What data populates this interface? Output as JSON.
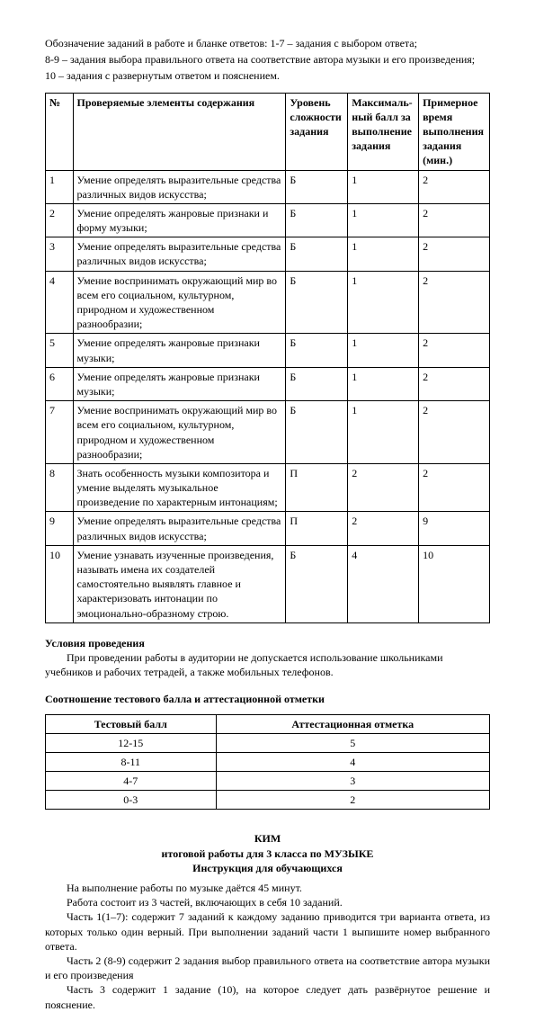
{
  "intro": {
    "line1": "Обозначение заданий в работе и бланке ответов: 1-7 – задания с выбором ответа;",
    "line2": "8-9 – задания выбора правильного ответа на соответствие автора музыки и его произведения;",
    "line3": "10 – задания с развернутым ответом и пояснением."
  },
  "table": {
    "headers": {
      "num": "№",
      "desc": "Проверяемые элементы содержания",
      "level": "Уровень сложности задания",
      "score": "Максималь-ный балл за выполнение задания",
      "time": "Примерное время выполнения задания (мин.)"
    },
    "rows": [
      {
        "num": "1",
        "desc": "Умение определять выразительные средства различных видов искусства;",
        "level": "Б",
        "score": "1",
        "time": "2"
      },
      {
        "num": "2",
        "desc": "Умение определять жанровые признаки и форму музыки;",
        "level": "Б",
        "score": "1",
        "time": "2"
      },
      {
        "num": "3",
        "desc": "Умение определять выразительные средства различных видов искусства;",
        "level": "Б",
        "score": "1",
        "time": "2"
      },
      {
        "num": "4",
        "desc": "Умение воспринимать окружающий мир во всем его социальном, культурном, природном и художественном разнообразии;",
        "level": "Б",
        "score": "1",
        "time": "2"
      },
      {
        "num": "5",
        "desc": "Умение определять жанровые признаки музыки;",
        "level": "Б",
        "score": "1",
        "time": "2"
      },
      {
        "num": "6",
        "desc": "Умение определять жанровые признаки музыки;",
        "level": "Б",
        "score": "1",
        "time": "2"
      },
      {
        "num": "7",
        "desc": "Умение воспринимать окружающий мир во всем его социальном, культурном, природном и художественном разнообразии;",
        "level": "Б",
        "score": "1",
        "time": "2"
      },
      {
        "num": "8",
        "desc": "Знать особенность музыки композитора и умение выделять музыкальное произведение по характерным интонациям;",
        "level": "П",
        "score": "2",
        "time": "2"
      },
      {
        "num": "9",
        "desc": "Умение определять выразительные средства различных видов искусства;",
        "level": "П",
        "score": "2",
        "time": "9"
      },
      {
        "num": "10",
        "desc": "Умение узнавать изученные произведения, называть имена их создателей самостоятельно выявлять главное и характеризовать интонации по эмоционально-образному строю.",
        "level": "Б",
        "score": "4",
        "time": "10"
      }
    ]
  },
  "conditions": {
    "heading": "Условия проведения",
    "text": "При проведении работы в аудитории не допускается использование школьниками учебников и рабочих тетрадей, а также мобильных телефонов."
  },
  "grade": {
    "heading": "Соотношение тестового балла и аттестационной отметки",
    "headers": {
      "score": "Тестовый балл",
      "mark": "Аттестационная отметка"
    },
    "rows": [
      {
        "score": "12-15",
        "mark": "5"
      },
      {
        "score": "8-11",
        "mark": "4"
      },
      {
        "score": "4-7",
        "mark": "3"
      },
      {
        "score": "0-3",
        "mark": "2"
      }
    ]
  },
  "kim": {
    "title": "КИМ",
    "subtitle": "итоговой работы для 3 класса по МУЗЫКЕ",
    "instr_heading": "Инструкция для обучающихся",
    "p1": "На выполнение работы по музыке даётся 45 минут.",
    "p2": "Работа состоит из 3 частей, включающих в себя 10 заданий.",
    "p3": "Часть 1(1–7): содержит 7 заданий к каждому заданию приводится три варианта ответа, из которых только один верный. При выполнении заданий части 1 выпишите номер выбранного ответа.",
    "p4": "Часть 2 (8-9) содержит 2 задания выбор правильного ответа на соответствие автора музыки и его произведения",
    "p5": "Часть 3 содержит 1 задание (10), на которое следует дать развёрнутое решение и пояснение."
  }
}
